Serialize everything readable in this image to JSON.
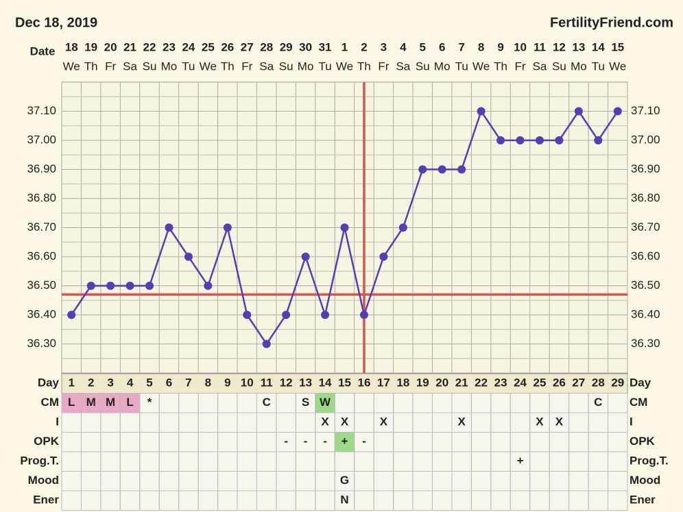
{
  "chart_data": {
    "type": "line",
    "title": "Dec 18, 2019",
    "site": "FertilityFriend.com",
    "date_label": "Date",
    "day_label": "Day",
    "x": [
      1,
      2,
      3,
      4,
      5,
      6,
      7,
      8,
      9,
      10,
      11,
      12,
      13,
      14,
      15,
      16,
      17,
      18,
      19,
      20,
      21,
      22,
      23,
      24,
      25,
      26,
      27,
      28,
      29
    ],
    "dates": [
      18,
      19,
      20,
      21,
      22,
      23,
      24,
      25,
      26,
      27,
      28,
      29,
      30,
      31,
      1,
      2,
      3,
      4,
      5,
      6,
      7,
      8,
      9,
      10,
      11,
      12,
      13,
      14,
      15
    ],
    "weekdays": [
      "We",
      "Th",
      "Fr",
      "Sa",
      "Su",
      "Mo",
      "Tu",
      "We",
      "Th",
      "Fr",
      "Sa",
      "Su",
      "Mo",
      "Tu",
      "We",
      "Th",
      "Fr",
      "Sa",
      "Su",
      "Mo",
      "Tu",
      "We",
      "Th",
      "Fr",
      "Sa",
      "Su",
      "Mo",
      "Tu",
      "We"
    ],
    "series": [
      {
        "color": "#5140b5",
        "values": [
          36.4,
          36.5,
          36.5,
          36.5,
          36.5,
          36.7,
          36.6,
          36.5,
          36.7,
          36.4,
          36.3,
          36.4,
          36.6,
          36.4,
          36.7,
          36.4,
          36.6,
          36.7,
          36.9,
          36.9,
          36.9,
          37.1,
          37.0,
          37.0,
          37.0,
          37.0,
          37.1,
          37.0,
          37.1
        ]
      }
    ],
    "coverline": 36.47,
    "ovulation_day": 16,
    "line_color": "#d9534f",
    "xlim": [
      0.5,
      29.5
    ],
    "ylim": [
      36.2,
      37.2
    ],
    "yticks": [
      {
        "value": 36.3,
        "label": "36.30"
      },
      {
        "value": 36.4,
        "label": "36.40"
      },
      {
        "value": 36.5,
        "label": "36.50"
      },
      {
        "value": 36.6,
        "label": "36.60"
      },
      {
        "value": 36.7,
        "label": "36.70"
      },
      {
        "value": 36.8,
        "label": "36.80"
      },
      {
        "value": 36.9,
        "label": "36.90"
      },
      {
        "value": 37.0,
        "label": "37.00"
      },
      {
        "value": 37.1,
        "label": "37.10"
      }
    ],
    "grid": true
  },
  "table": {
    "rows": [
      {
        "label": "CM",
        "cells": [
          "L",
          "M",
          "M",
          "L",
          "*",
          null,
          null,
          null,
          null,
          null,
          "C",
          null,
          "S",
          "W",
          null,
          null,
          null,
          null,
          null,
          null,
          null,
          null,
          null,
          null,
          null,
          null,
          null,
          "C",
          null
        ],
        "colors": [
          "#e9a9c6",
          "#e9a9c6",
          "#e9a9c6",
          "#e9a9c6",
          null,
          null,
          null,
          null,
          null,
          null,
          null,
          null,
          null,
          "#9ed98a",
          null,
          null,
          null,
          null,
          null,
          null,
          null,
          null,
          null,
          null,
          null,
          null,
          null,
          null,
          null
        ]
      },
      {
        "label": "I",
        "cells": [
          null,
          null,
          null,
          null,
          null,
          null,
          null,
          null,
          null,
          null,
          null,
          null,
          null,
          "X",
          "X",
          null,
          "X",
          null,
          null,
          null,
          "X",
          null,
          null,
          null,
          "X",
          "X",
          null,
          null,
          null
        ]
      },
      {
        "label": "OPK",
        "cells": [
          null,
          null,
          null,
          null,
          null,
          null,
          null,
          null,
          null,
          null,
          null,
          "-",
          "-",
          "-",
          "+",
          "-",
          null,
          null,
          null,
          null,
          null,
          null,
          null,
          null,
          null,
          null,
          null,
          null,
          null
        ],
        "colors": [
          null,
          null,
          null,
          null,
          null,
          null,
          null,
          null,
          null,
          null,
          null,
          null,
          null,
          null,
          "#9ed98a",
          null,
          null,
          null,
          null,
          null,
          null,
          null,
          null,
          null,
          null,
          null,
          null,
          null,
          null
        ]
      },
      {
        "label": "Prog.T.",
        "cells": [
          null,
          null,
          null,
          null,
          null,
          null,
          null,
          null,
          null,
          null,
          null,
          null,
          null,
          null,
          null,
          null,
          null,
          null,
          null,
          null,
          null,
          null,
          null,
          "+",
          null,
          null,
          null,
          null,
          null
        ]
      },
      {
        "label": "Mood",
        "cells": [
          null,
          null,
          null,
          null,
          null,
          null,
          null,
          null,
          null,
          null,
          null,
          null,
          null,
          null,
          "G",
          null,
          null,
          null,
          null,
          null,
          null,
          null,
          null,
          null,
          null,
          null,
          null,
          null,
          null
        ]
      },
      {
        "label": "Ener",
        "cells": [
          null,
          null,
          null,
          null,
          null,
          null,
          null,
          null,
          null,
          null,
          null,
          null,
          null,
          null,
          "N",
          null,
          null,
          null,
          null,
          null,
          null,
          null,
          null,
          null,
          null,
          null,
          null,
          null,
          null
        ]
      }
    ]
  }
}
